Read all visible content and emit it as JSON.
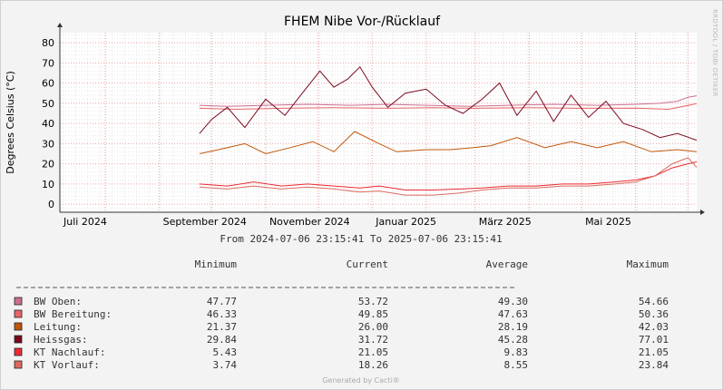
{
  "chart_data": {
    "type": "line",
    "title": "FHEM Nibe Vor-/Rücklauf",
    "ylabel": "Degrees Celsius (°C)",
    "xlabel": "",
    "ylim": [
      -4,
      85
    ],
    "y_ticks": [
      0,
      10,
      20,
      30,
      40,
      50,
      60,
      70,
      80
    ],
    "x_range": [
      "2024-07-06",
      "2025-07-06"
    ],
    "x_ticks": [
      {
        "date": "2024-07-01",
        "label": "Juli 2024"
      },
      {
        "date": "2024-09-01",
        "label": "September 2024"
      },
      {
        "date": "2024-11-01",
        "label": "November 2024"
      },
      {
        "date": "2025-01-01",
        "label": "Januar 2025"
      },
      {
        "date": "2025-03-01",
        "label": "März 2025"
      },
      {
        "date": "2025-05-01",
        "label": "Mai 2025"
      }
    ],
    "grid": true,
    "watermark": "RRDTOOL / TOBI OETIKER",
    "time_range_text": "From 2024-07-06 23:15:41 To 2025-07-06 23:15:41",
    "columns": [
      "Minimum",
      "Current",
      "Average",
      "Maximum"
    ],
    "series": [
      {
        "name": "BW Oben:",
        "color": "#CC6F8E",
        "minimum": "47.77",
        "current": "53.72",
        "average": "49.30",
        "maximum": "54.66",
        "x": [
          "2024-09-24",
          "2024-10-10",
          "2024-11-01",
          "2024-11-25",
          "2024-12-20",
          "2025-01-10",
          "2025-02-01",
          "2025-02-25",
          "2025-03-20",
          "2025-04-15",
          "2025-05-10",
          "2025-06-01",
          "2025-06-15",
          "2025-06-25",
          "2025-07-01",
          "2025-07-06"
        ],
        "y": [
          49,
          48.5,
          49,
          49.5,
          49,
          49.5,
          49,
          48.5,
          49,
          49.5,
          49,
          49.5,
          50,
          51,
          53,
          53.7
        ]
      },
      {
        "name": "BW Bereitung:",
        "color": "#E8646A",
        "minimum": "46.33",
        "current": "49.85",
        "average": "47.63",
        "maximum": "50.36",
        "x": [
          "2024-09-24",
          "2024-10-15",
          "2024-11-10",
          "2024-12-10",
          "2025-01-10",
          "2025-02-05",
          "2025-03-01",
          "2025-04-01",
          "2025-05-01",
          "2025-06-01",
          "2025-06-20",
          "2025-07-06"
        ],
        "y": [
          47.5,
          47,
          47.5,
          47.8,
          47.5,
          47.8,
          47.5,
          47.8,
          47.5,
          47.6,
          47,
          49.8
        ]
      },
      {
        "name": "Leitung:",
        "color": "#C0560A",
        "minimum": "21.37",
        "current": "26.00",
        "average": "28.19",
        "maximum": "42.03",
        "x": [
          "2024-09-24",
          "2024-10-05",
          "2024-10-20",
          "2024-11-01",
          "2024-11-15",
          "2024-11-28",
          "2024-12-10",
          "2024-12-22",
          "2025-01-05",
          "2025-01-15",
          "2025-02-01",
          "2025-02-15",
          "2025-02-28",
          "2025-03-10",
          "2025-03-25",
          "2025-04-10",
          "2025-04-25",
          "2025-05-10",
          "2025-05-25",
          "2025-06-10",
          "2025-06-25",
          "2025-07-06"
        ],
        "y": [
          25,
          27,
          30,
          25,
          28,
          31,
          26,
          36,
          30,
          26,
          27,
          27,
          28,
          29,
          33,
          28,
          31,
          28,
          31,
          26,
          27,
          26
        ]
      },
      {
        "name": "Heissgas:",
        "color": "#7A0A1C",
        "minimum": "29.84",
        "current": "31.72",
        "average": "45.28",
        "maximum": "77.01",
        "x": [
          "2024-09-24",
          "2024-10-01",
          "2024-10-10",
          "2024-10-20",
          "2024-11-01",
          "2024-11-12",
          "2024-11-22",
          "2024-12-02",
          "2024-12-10",
          "2024-12-18",
          "2024-12-25",
          "2025-01-01",
          "2025-01-10",
          "2025-01-20",
          "2025-02-01",
          "2025-02-12",
          "2025-02-22",
          "2025-03-05",
          "2025-03-15",
          "2025-03-25",
          "2025-04-05",
          "2025-04-15",
          "2025-04-25",
          "2025-05-05",
          "2025-05-15",
          "2025-05-25",
          "2025-06-05",
          "2025-06-15",
          "2025-06-25",
          "2025-07-06"
        ],
        "y": [
          35,
          42,
          48,
          38,
          52,
          44,
          55,
          66,
          58,
          62,
          68,
          58,
          48,
          55,
          57,
          49,
          45,
          52,
          60,
          44,
          56,
          41,
          54,
          43,
          51,
          40,
          37,
          33,
          35,
          31.7
        ]
      },
      {
        "name": "KT Nachlauf:",
        "color": "#EA2B33",
        "minimum": "5.43",
        "current": "21.05",
        "average": "9.83",
        "maximum": "21.05",
        "x": [
          "2024-09-24",
          "2024-10-10",
          "2024-10-25",
          "2024-11-10",
          "2024-11-25",
          "2024-12-10",
          "2024-12-25",
          "2025-01-05",
          "2025-01-20",
          "2025-02-05",
          "2025-02-20",
          "2025-03-05",
          "2025-03-20",
          "2025-04-05",
          "2025-04-20",
          "2025-05-05",
          "2025-05-20",
          "2025-06-01",
          "2025-06-12",
          "2025-06-22",
          "2025-07-01",
          "2025-07-06"
        ],
        "y": [
          10,
          9,
          11,
          9,
          10,
          9,
          8,
          9,
          7,
          7,
          7.5,
          8,
          9,
          9,
          10,
          10,
          11,
          12,
          14,
          18,
          20,
          21
        ]
      },
      {
        "name": "KT Vorlauf:",
        "color": "#DB6A5F",
        "minimum": "3.74",
        "current": "18.26",
        "average": "8.55",
        "maximum": "23.84",
        "x": [
          "2024-09-24",
          "2024-10-10",
          "2024-10-25",
          "2024-11-10",
          "2024-11-25",
          "2024-12-10",
          "2024-12-25",
          "2025-01-05",
          "2025-01-20",
          "2025-02-05",
          "2025-02-20",
          "2025-03-05",
          "2025-03-20",
          "2025-04-05",
          "2025-04-20",
          "2025-05-05",
          "2025-05-20",
          "2025-06-01",
          "2025-06-12",
          "2025-06-22",
          "2025-07-01",
          "2025-07-06"
        ],
        "y": [
          8.5,
          7.5,
          9,
          7.5,
          8.5,
          7.5,
          6,
          6.5,
          4.5,
          4.5,
          5.5,
          7,
          8,
          8,
          9,
          9,
          10,
          11,
          14,
          20,
          23,
          18.3
        ]
      }
    ]
  },
  "footer": "Generated by Cacti®"
}
